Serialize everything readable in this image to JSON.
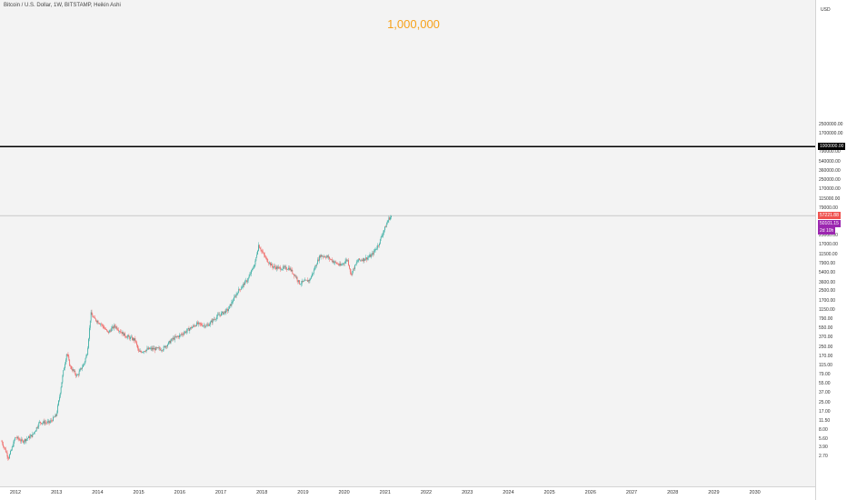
{
  "header": {
    "title": "Bitcoin / U.S. Dollar, 1W, BITSTAMP, Heikin Ashi",
    "annotation": "1,000,000"
  },
  "price_axis": {
    "currency": "USD",
    "current_price_tag": "57221.88",
    "secondary_tag": "50101.15",
    "countdown_tag": "2d 10h",
    "highlighted_level_tag": "1000000.00"
  },
  "colors": {
    "up": "#26a69a",
    "down": "#ef5350",
    "background": "#f3f3f3",
    "annotation": "#f7a21b",
    "current_price_tag": "#ef5350",
    "secondary_tag": "#9c27b0",
    "level_line": "#000000"
  },
  "chart_data": {
    "type": "candlestick",
    "scale": "log",
    "y_ticks": [
      "2500000.00",
      "1700000.00",
      "1000000.00",
      "790000.00",
      "540000.00",
      "360000.00",
      "250000.00",
      "170000.00",
      "115000.00",
      "79000.00",
      "57221.88",
      "50101.15",
      "25000.00",
      "17000.00",
      "11500.00",
      "7900.00",
      "5400.00",
      "3600.00",
      "2500.00",
      "1700.00",
      "1150.00",
      "790.00",
      "550.00",
      "370.00",
      "250.00",
      "170.00",
      "115.00",
      "79.00",
      "55.00",
      "37.00",
      "25.00",
      "17.00",
      "11.50",
      "8.00",
      "5.60",
      "3.90",
      "2.70"
    ],
    "x_ticks": [
      "2012",
      "2013",
      "2014",
      "2015",
      "2016",
      "2017",
      "2018",
      "2019",
      "2020",
      "2021",
      "2022",
      "2023",
      "2024",
      "2025",
      "2026",
      "2027",
      "2028",
      "2029",
      "2030"
    ],
    "horizontal_line": 1000000,
    "price_path": [
      {
        "date": "2011-09",
        "price": 5
      },
      {
        "date": "2011-11",
        "price": 2.5
      },
      {
        "date": "2012-01",
        "price": 6
      },
      {
        "date": "2012-03",
        "price": 5
      },
      {
        "date": "2012-06",
        "price": 6.5
      },
      {
        "date": "2012-08",
        "price": 11
      },
      {
        "date": "2012-11",
        "price": 11
      },
      {
        "date": "2013-01",
        "price": 15
      },
      {
        "date": "2013-03",
        "price": 90
      },
      {
        "date": "2013-04",
        "price": 200
      },
      {
        "date": "2013-05",
        "price": 110
      },
      {
        "date": "2013-07",
        "price": 75
      },
      {
        "date": "2013-09",
        "price": 125
      },
      {
        "date": "2013-10",
        "price": 200
      },
      {
        "date": "2013-11",
        "price": 1000
      },
      {
        "date": "2013-12",
        "price": 800
      },
      {
        "date": "2014-02",
        "price": 650
      },
      {
        "date": "2014-04",
        "price": 450
      },
      {
        "date": "2014-06",
        "price": 600
      },
      {
        "date": "2014-09",
        "price": 400
      },
      {
        "date": "2014-12",
        "price": 330
      },
      {
        "date": "2015-01",
        "price": 200
      },
      {
        "date": "2015-04",
        "price": 230
      },
      {
        "date": "2015-08",
        "price": 230
      },
      {
        "date": "2015-11",
        "price": 350
      },
      {
        "date": "2016-01",
        "price": 400
      },
      {
        "date": "2016-06",
        "price": 650
      },
      {
        "date": "2016-09",
        "price": 600
      },
      {
        "date": "2016-12",
        "price": 900
      },
      {
        "date": "2017-03",
        "price": 1150
      },
      {
        "date": "2017-06",
        "price": 2500
      },
      {
        "date": "2017-09",
        "price": 4200
      },
      {
        "date": "2017-11",
        "price": 8000
      },
      {
        "date": "2017-12",
        "price": 17000
      },
      {
        "date": "2018-02",
        "price": 10000
      },
      {
        "date": "2018-04",
        "price": 7000
      },
      {
        "date": "2018-06",
        "price": 6500
      },
      {
        "date": "2018-09",
        "price": 6500
      },
      {
        "date": "2018-11",
        "price": 4500
      },
      {
        "date": "2018-12",
        "price": 3500
      },
      {
        "date": "2019-03",
        "price": 4000
      },
      {
        "date": "2019-05",
        "price": 8000
      },
      {
        "date": "2019-06",
        "price": 11000
      },
      {
        "date": "2019-08",
        "price": 10500
      },
      {
        "date": "2019-10",
        "price": 8500
      },
      {
        "date": "2019-12",
        "price": 7200
      },
      {
        "date": "2020-02",
        "price": 9500
      },
      {
        "date": "2020-03",
        "price": 5000
      },
      {
        "date": "2020-05",
        "price": 9000
      },
      {
        "date": "2020-07",
        "price": 9500
      },
      {
        "date": "2020-09",
        "price": 11000
      },
      {
        "date": "2020-11",
        "price": 17000
      },
      {
        "date": "2020-12",
        "price": 25000
      },
      {
        "date": "2021-01",
        "price": 35000
      },
      {
        "date": "2021-02",
        "price": 50000
      },
      {
        "date": "2021-03",
        "price": 57000
      }
    ]
  }
}
